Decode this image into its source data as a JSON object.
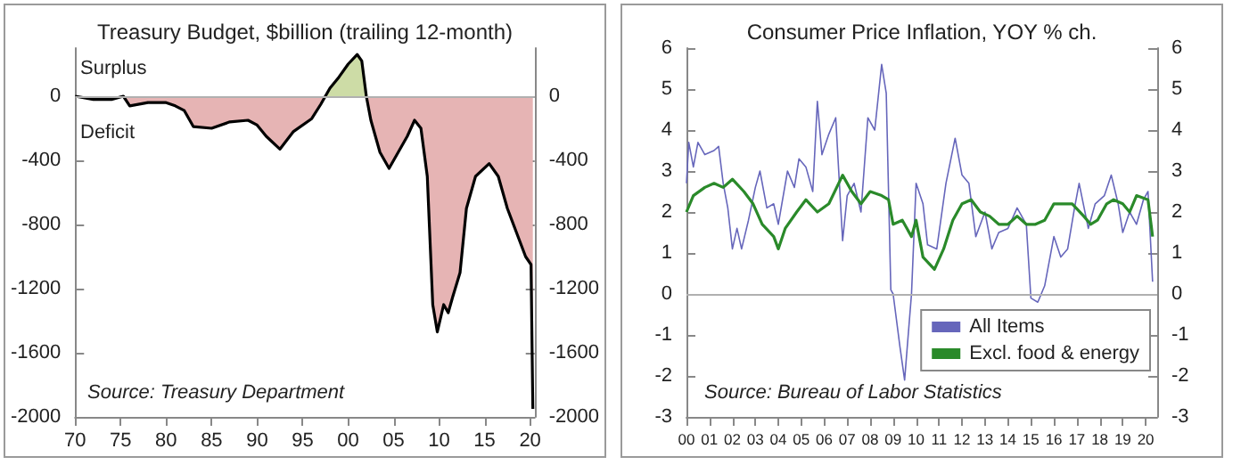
{
  "chart_data": [
    {
      "type": "area",
      "title": "Treasury Budget, $billion (trailing 12-month)",
      "annotations": [
        "Surplus",
        "Deficit",
        "Source: Treasury Department"
      ],
      "x": [
        1970,
        1972,
        1974,
        1975.3,
        1976,
        1978,
        1980,
        1981,
        1982,
        1983,
        1985,
        1987,
        1989,
        1990,
        1991,
        1992.5,
        1994,
        1996,
        1997,
        1998,
        1999,
        2000,
        2001,
        2001.5,
        2002,
        2002.5,
        2003.5,
        2004.5,
        2005.5,
        2006.5,
        2007.3,
        2008,
        2008.7,
        2009.3,
        2009.8,
        2010.5,
        2011,
        2011.5,
        2012.3,
        2013,
        2014,
        2015.5,
        2016.5,
        2017.5,
        2018.5,
        2019.5,
        2020.1,
        2020.3
      ],
      "series": [
        {
          "color": "#000000",
          "values": [
            0,
            -20,
            -20,
            0,
            -60,
            -40,
            -40,
            -60,
            -90,
            -190,
            -200,
            -160,
            -150,
            -180,
            -250,
            -330,
            -220,
            -140,
            -50,
            50,
            120,
            200,
            260,
            220,
            0,
            -150,
            -350,
            -450,
            -350,
            -250,
            -150,
            -200,
            -500,
            -1300,
            -1470,
            -1300,
            -1350,
            -1250,
            -1100,
            -700,
            -500,
            -420,
            -500,
            -700,
            -850,
            -1000,
            -1050,
            -1950
          ]
        }
      ],
      "xlim": [
        1970,
        2020.5
      ],
      "xticks": [
        {
          "value": 1970,
          "label": "70"
        },
        {
          "value": 1975,
          "label": "75"
        },
        {
          "value": 1980,
          "label": "80"
        },
        {
          "value": 1985,
          "label": "85"
        },
        {
          "value": 1990,
          "label": "90"
        },
        {
          "value": 1995,
          "label": "95"
        },
        {
          "value": 2000,
          "label": "00"
        },
        {
          "value": 2005,
          "label": "05"
        },
        {
          "value": 2010,
          "label": "10"
        },
        {
          "value": 2015,
          "label": "15"
        },
        {
          "value": 2020,
          "label": "20"
        }
      ],
      "ylim": [
        -2000,
        300
      ],
      "yticks": [
        -2000,
        -1600,
        -1200,
        -800,
        -400,
        0
      ],
      "y2lim": [
        -2000,
        300
      ],
      "y2ticks": [
        -2000,
        -1600,
        -1200,
        -800,
        -400,
        0
      ],
      "ref_lines": [
        {
          "axis": "y",
          "value": 0,
          "color": "#b0b0b0"
        }
      ],
      "grid": false,
      "legend": false
    },
    {
      "type": "line",
      "title": "Consumer Price Inflation, YOY % ch.",
      "annotations": [
        "Source: Bureau of Labor Statistics"
      ],
      "series": [
        {
          "name": "All Items",
          "color": "#6666bb",
          "x": [
            2000.0,
            2000.1,
            2000.3,
            2000.5,
            2000.8,
            2001.2,
            2001.4,
            2001.6,
            2001.8,
            2002.0,
            2002.2,
            2002.4,
            2002.7,
            2003.0,
            2003.2,
            2003.5,
            2003.8,
            2004.0,
            2004.4,
            2004.7,
            2004.9,
            2005.2,
            2005.5,
            2005.7,
            2005.9,
            2006.2,
            2006.5,
            2006.8,
            2007.0,
            2007.3,
            2007.6,
            2007.9,
            2008.2,
            2008.5,
            2008.7,
            2008.9,
            2009.0,
            2009.3,
            2009.5,
            2009.8,
            2010.0,
            2010.3,
            2010.5,
            2010.9,
            2011.3,
            2011.7,
            2012.0,
            2012.3,
            2012.6,
            2013.0,
            2013.3,
            2013.6,
            2014.0,
            2014.4,
            2014.8,
            2015.0,
            2015.3,
            2015.6,
            2016.0,
            2016.3,
            2016.6,
            2016.9,
            2017.1,
            2017.5,
            2017.8,
            2018.2,
            2018.5,
            2018.8,
            2019.0,
            2019.3,
            2019.6,
            2019.9,
            2020.1,
            2020.3
          ],
          "values": [
            2.7,
            3.7,
            3.1,
            3.7,
            3.4,
            3.5,
            3.6,
            2.7,
            2.1,
            1.1,
            1.6,
            1.1,
            1.8,
            2.6,
            3.0,
            2.1,
            2.2,
            1.7,
            3.0,
            2.6,
            3.3,
            3.1,
            2.5,
            4.7,
            3.4,
            3.9,
            4.3,
            1.3,
            2.4,
            2.7,
            2.0,
            4.3,
            4.0,
            5.6,
            4.9,
            0.1,
            0.0,
            -1.3,
            -2.1,
            0.0,
            2.7,
            2.2,
            1.2,
            1.1,
            2.7,
            3.8,
            2.9,
            2.7,
            1.4,
            2.0,
            1.1,
            1.5,
            1.6,
            2.1,
            1.7,
            -0.1,
            -0.2,
            0.2,
            1.4,
            0.9,
            1.1,
            2.1,
            2.7,
            1.6,
            2.2,
            2.4,
            2.9,
            2.2,
            1.5,
            2.0,
            1.7,
            2.3,
            2.5,
            0.3
          ]
        },
        {
          "name": "Excl. food & energy",
          "color": "#2a8a2a",
          "x": [
            2000.0,
            2000.3,
            2000.8,
            2001.2,
            2001.6,
            2002.0,
            2002.5,
            2002.9,
            2003.3,
            2003.8,
            2004.0,
            2004.3,
            2004.8,
            2005.2,
            2005.7,
            2006.2,
            2006.8,
            2007.2,
            2007.6,
            2008.0,
            2008.5,
            2008.8,
            2009.0,
            2009.4,
            2009.8,
            2010.0,
            2010.3,
            2010.8,
            2011.2,
            2011.6,
            2012.0,
            2012.4,
            2012.8,
            2013.2,
            2013.6,
            2014.0,
            2014.4,
            2014.8,
            2015.2,
            2015.6,
            2016.0,
            2016.4,
            2016.8,
            2017.3,
            2017.6,
            2017.9,
            2018.3,
            2018.6,
            2019.0,
            2019.3,
            2019.6,
            2020.1,
            2020.3
          ],
          "values": [
            2.0,
            2.4,
            2.6,
            2.7,
            2.6,
            2.8,
            2.5,
            2.2,
            1.7,
            1.4,
            1.1,
            1.6,
            2.0,
            2.3,
            2.0,
            2.2,
            2.9,
            2.5,
            2.2,
            2.5,
            2.4,
            2.3,
            1.7,
            1.8,
            1.4,
            1.8,
            0.9,
            0.6,
            1.1,
            1.8,
            2.2,
            2.3,
            2.0,
            1.9,
            1.7,
            1.7,
            1.9,
            1.7,
            1.7,
            1.8,
            2.2,
            2.2,
            2.2,
            1.9,
            1.7,
            1.8,
            2.2,
            2.3,
            2.2,
            2.0,
            2.4,
            2.3,
            1.4
          ]
        }
      ],
      "xlim": [
        2000,
        2020.5
      ],
      "xticks": [
        {
          "value": 2000,
          "label": "00"
        },
        {
          "value": 2001,
          "label": "01"
        },
        {
          "value": 2002,
          "label": "02"
        },
        {
          "value": 2003,
          "label": "03"
        },
        {
          "value": 2004,
          "label": "04"
        },
        {
          "value": 2005,
          "label": "05"
        },
        {
          "value": 2006,
          "label": "06"
        },
        {
          "value": 2007,
          "label": "07"
        },
        {
          "value": 2008,
          "label": "08"
        },
        {
          "value": 2009,
          "label": "09"
        },
        {
          "value": 2010,
          "label": "10"
        },
        {
          "value": 2011,
          "label": "11"
        },
        {
          "value": 2012,
          "label": "12"
        },
        {
          "value": 2013,
          "label": "13"
        },
        {
          "value": 2014,
          "label": "14"
        },
        {
          "value": 2015,
          "label": "15"
        },
        {
          "value": 2016,
          "label": "16"
        },
        {
          "value": 2017,
          "label": "17"
        },
        {
          "value": 2018,
          "label": "18"
        },
        {
          "value": 2019,
          "label": "19"
        },
        {
          "value": 2020,
          "label": "20"
        }
      ],
      "ylim": [
        -3,
        6
      ],
      "yticks": [
        -3,
        -2,
        -1,
        0,
        1,
        2,
        3,
        4,
        5,
        6
      ],
      "y2lim": [
        -3,
        6
      ],
      "y2ticks": [
        -3,
        -2,
        -1,
        0,
        1,
        2,
        3,
        4,
        5,
        6
      ],
      "ref_lines": [
        {
          "axis": "y",
          "value": 0,
          "color": "#b0b0b0"
        }
      ],
      "grid": false,
      "legend": "bottom right"
    }
  ]
}
